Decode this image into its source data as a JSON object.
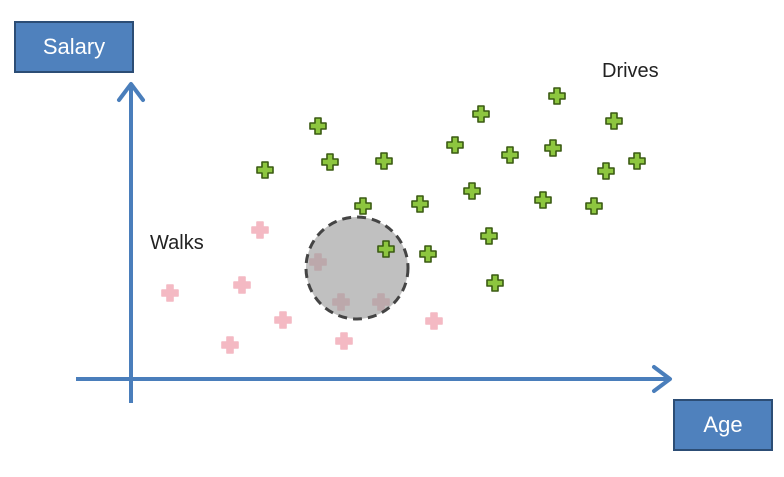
{
  "axes": {
    "y_label": "Salary",
    "x_label": "Age"
  },
  "groups": {
    "drives": {
      "label": "Drives",
      "color": "#8dc63f",
      "stroke": "#3a5a12"
    },
    "walks": {
      "label": "Walks",
      "color": "#f4b9c3",
      "stroke": "#f4b9c3"
    }
  },
  "chart_data": {
    "type": "scatter",
    "xlabel": "Age",
    "ylabel": "Salary",
    "grid": false,
    "series": [
      {
        "name": "Drives",
        "points": [
          [
            557,
            96
          ],
          [
            481,
            114
          ],
          [
            318,
            126
          ],
          [
            614,
            121
          ],
          [
            455,
            145
          ],
          [
            510,
            155
          ],
          [
            553,
            148
          ],
          [
            265,
            170
          ],
          [
            330,
            162
          ],
          [
            384,
            161
          ],
          [
            606,
            171
          ],
          [
            637,
            161
          ],
          [
            472,
            191
          ],
          [
            543,
            200
          ],
          [
            363,
            206
          ],
          [
            420,
            204
          ],
          [
            594,
            206
          ],
          [
            489,
            236
          ],
          [
            386,
            249
          ],
          [
            428,
            254
          ],
          [
            495,
            283
          ]
        ]
      },
      {
        "name": "Walks",
        "points": [
          [
            260,
            230
          ],
          [
            318,
            262
          ],
          [
            170,
            293
          ],
          [
            242,
            285
          ],
          [
            341,
            302
          ],
          [
            381,
            302
          ],
          [
            283,
            320
          ],
          [
            434,
            321
          ],
          [
            230,
            345
          ],
          [
            344,
            341
          ]
        ]
      }
    ],
    "neighborhood": {
      "x": 357,
      "y": 268,
      "r": 51
    }
  }
}
